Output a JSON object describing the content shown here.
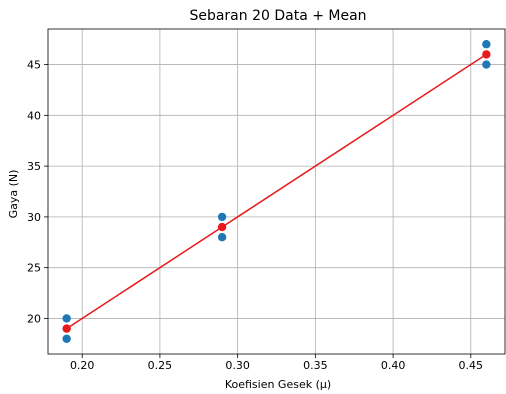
{
  "chart_data": {
    "type": "scatter",
    "title": "Sebaran 20 Data + Mean",
    "xlabel": "Koefisien Gesek (μ)",
    "ylabel": "Gaya (N)",
    "xlim": [
      0.178,
      0.472
    ],
    "ylim": [
      16.5,
      48.5
    ],
    "xticks": [
      0.2,
      0.25,
      0.3,
      0.35,
      0.4,
      0.45
    ],
    "xtick_labels": [
      "0.20",
      "0.25",
      "0.30",
      "0.35",
      "0.40",
      "0.45"
    ],
    "yticks": [
      20,
      25,
      30,
      35,
      40,
      45
    ],
    "ytick_labels": [
      "20",
      "25",
      "30",
      "35",
      "40",
      "45"
    ],
    "grid": true,
    "series": [
      {
        "kind": "scatter",
        "color": "#1f77b4",
        "points": [
          {
            "x": 0.19,
            "y": 20
          },
          {
            "x": 0.19,
            "y": 18
          },
          {
            "x": 0.29,
            "y": 30
          },
          {
            "x": 0.29,
            "y": 28
          },
          {
            "x": 0.46,
            "y": 47
          },
          {
            "x": 0.46,
            "y": 45
          }
        ]
      },
      {
        "kind": "line-markers",
        "color": "#e8191a",
        "points": [
          {
            "x": 0.19,
            "y": 19
          },
          {
            "x": 0.29,
            "y": 29
          },
          {
            "x": 0.46,
            "y": 46
          }
        ]
      }
    ]
  }
}
